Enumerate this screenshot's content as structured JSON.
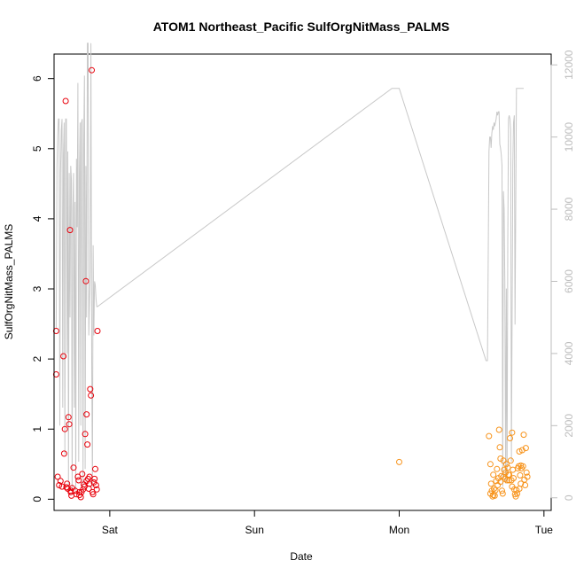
{
  "chart_data": {
    "type": "scatter",
    "title": "ATOM1 Northeast_Pacific SulfOrgNitMass_PALMS",
    "xlabel": "Date",
    "ylabel": "SulfOrgNitMass_PALMS",
    "x_unit": "days since Fri 00:00",
    "xlim": [
      0.615,
      4.05
    ],
    "ylim": [
      -0.16,
      6.35
    ],
    "x_ticks": [
      {
        "value": 1,
        "label": "Sat"
      },
      {
        "value": 2,
        "label": "Sun"
      },
      {
        "value": 3,
        "label": "Mon"
      },
      {
        "value": 4,
        "label": "Tue"
      }
    ],
    "y_ticks": [
      0,
      1,
      2,
      3,
      4,
      5,
      6
    ],
    "y2lim": [
      -350,
      12300
    ],
    "y2_ticks": [
      0,
      2000,
      4000,
      6000,
      8000,
      10000,
      12000
    ],
    "grid": false,
    "colors": {
      "flight1": "#e8000b",
      "flight2": "#f7941d",
      "altitude": "#c8c8c8"
    },
    "series": [
      {
        "name": "",
        "color": "#e8000b",
        "points": [
          [
            0.63,
            2.4
          ],
          [
            0.63,
            1.78
          ],
          [
            0.65,
            0.2
          ],
          [
            0.64,
            0.32
          ],
          [
            0.67,
            0.18
          ],
          [
            0.68,
            2.04
          ],
          [
            0.685,
            0.65
          ],
          [
            0.69,
            1.0
          ],
          [
            0.695,
            5.68
          ],
          [
            0.7,
            0.17
          ],
          [
            0.705,
            0.22
          ],
          [
            0.71,
            0.15
          ],
          [
            0.715,
            1.17
          ],
          [
            0.72,
            1.07
          ],
          [
            0.725,
            3.84
          ],
          [
            0.73,
            0.1
          ],
          [
            0.735,
            0.05
          ],
          [
            0.74,
            0.16
          ],
          [
            0.75,
            0.45
          ],
          [
            0.76,
            0.12
          ],
          [
            0.77,
            0.07
          ],
          [
            0.78,
            0.32
          ],
          [
            0.785,
            0.27
          ],
          [
            0.79,
            0.06
          ],
          [
            0.8,
            0.03
          ],
          [
            0.805,
            0.1
          ],
          [
            0.81,
            0.36
          ],
          [
            0.815,
            0.14
          ],
          [
            0.82,
            0.21
          ],
          [
            0.825,
            0.18
          ],
          [
            0.83,
            0.93
          ],
          [
            0.835,
            3.11
          ],
          [
            0.84,
            1.21
          ],
          [
            0.845,
            0.78
          ],
          [
            0.85,
            0.29
          ],
          [
            0.855,
            0.15
          ],
          [
            0.86,
            0.32
          ],
          [
            0.865,
            1.57
          ],
          [
            0.87,
            1.48
          ],
          [
            0.875,
            6.12
          ],
          [
            0.88,
            0.1
          ],
          [
            0.885,
            0.07
          ],
          [
            0.89,
            0.24
          ],
          [
            0.895,
            0.29
          ],
          [
            0.9,
            0.43
          ],
          [
            0.905,
            0.2
          ],
          [
            0.91,
            0.14
          ],
          [
            0.915,
            2.4
          ],
          [
            0.66,
            0.26
          ],
          [
            0.73,
            0.12
          ],
          [
            0.79,
            0.1
          ],
          [
            0.84,
            0.26
          ],
          [
            0.86,
            0.22
          ]
        ]
      },
      {
        "name": "",
        "color": "#f7941d",
        "points": [
          [
            3.0,
            0.53
          ],
          [
            3.62,
            0.9
          ],
          [
            3.63,
            0.5
          ],
          [
            3.635,
            0.22
          ],
          [
            3.64,
            0.12
          ],
          [
            3.645,
            0.04
          ],
          [
            3.65,
            0.06
          ],
          [
            3.655,
            0.15
          ],
          [
            3.66,
            0.05
          ],
          [
            3.665,
            0.13
          ],
          [
            3.67,
            0.26
          ],
          [
            3.675,
            0.43
          ],
          [
            3.68,
            0.2
          ],
          [
            3.685,
            0.3
          ],
          [
            3.69,
            0.99
          ],
          [
            3.695,
            0.74
          ],
          [
            3.7,
            0.58
          ],
          [
            3.705,
            0.33
          ],
          [
            3.71,
            0.12
          ],
          [
            3.715,
            0.08
          ],
          [
            3.72,
            0.55
          ],
          [
            3.725,
            0.42
          ],
          [
            3.73,
            0.29
          ],
          [
            3.735,
            0.38
          ],
          [
            3.74,
            0.5
          ],
          [
            3.745,
            0.27
          ],
          [
            3.75,
            0.45
          ],
          [
            3.755,
            0.35
          ],
          [
            3.76,
            0.27
          ],
          [
            3.765,
            0.87
          ],
          [
            3.77,
            0.55
          ],
          [
            3.775,
            0.27
          ],
          [
            3.78,
            0.95
          ],
          [
            3.785,
            0.42
          ],
          [
            3.79,
            0.3
          ],
          [
            3.795,
            0.14
          ],
          [
            3.8,
            0.07
          ],
          [
            3.805,
            0.04
          ],
          [
            3.81,
            0.13
          ],
          [
            3.815,
            0.08
          ],
          [
            3.82,
            0.44
          ],
          [
            3.825,
            0.47
          ],
          [
            3.83,
            0.68
          ],
          [
            3.835,
            0.34
          ],
          [
            3.84,
            0.22
          ],
          [
            3.845,
            0.44
          ],
          [
            3.85,
            0.7
          ],
          [
            3.855,
            0.47
          ],
          [
            3.86,
            0.92
          ],
          [
            3.865,
            0.28
          ],
          [
            3.87,
            0.2
          ],
          [
            3.875,
            0.73
          ],
          [
            3.88,
            0.38
          ],
          [
            3.885,
            0.32
          ],
          [
            3.63,
            0.08
          ],
          [
            3.7,
            0.25
          ],
          [
            3.76,
            0.35
          ],
          [
            3.83,
            0.15
          ],
          [
            3.65,
            0.35
          ],
          [
            3.72,
            0.32
          ],
          [
            3.78,
            0.18
          ],
          [
            3.84,
            0.48
          ]
        ]
      }
    ],
    "altitude_line": {
      "name": "",
      "axis": "right",
      "color": "#c8c8c8",
      "points": [
        [
          0.63,
          4700
        ],
        [
          0.635,
          9200
        ],
        [
          0.64,
          10000
        ],
        [
          0.645,
          10500
        ],
        [
          0.65,
          10500
        ],
        [
          0.655,
          2000
        ],
        [
          0.66,
          9000
        ],
        [
          0.665,
          10200
        ],
        [
          0.67,
          10500
        ],
        [
          0.675,
          2500
        ],
        [
          0.68,
          9500
        ],
        [
          0.685,
          10400
        ],
        [
          0.69,
          1200
        ],
        [
          0.695,
          10500
        ],
        [
          0.7,
          10500
        ],
        [
          0.705,
          4000
        ],
        [
          0.71,
          9600
        ],
        [
          0.715,
          300
        ],
        [
          0.72,
          9000
        ],
        [
          0.725,
          5000
        ],
        [
          0.73,
          9200
        ],
        [
          0.735,
          8800
        ],
        [
          0.74,
          200
        ],
        [
          0.745,
          8000
        ],
        [
          0.75,
          9000
        ],
        [
          0.755,
          2500
        ],
        [
          0.76,
          8200
        ],
        [
          0.765,
          200
        ],
        [
          0.77,
          9400
        ],
        [
          0.775,
          7500
        ],
        [
          0.78,
          11500
        ],
        [
          0.785,
          1000
        ],
        [
          0.79,
          9000
        ],
        [
          0.795,
          10400
        ],
        [
          0.8,
          2000
        ],
        [
          0.805,
          10400
        ],
        [
          0.81,
          10500
        ],
        [
          0.815,
          300
        ],
        [
          0.82,
          9800
        ],
        [
          0.825,
          11700
        ],
        [
          0.83,
          800
        ],
        [
          0.835,
          9200
        ],
        [
          0.84,
          5000
        ],
        [
          0.845,
          12600
        ],
        [
          0.85,
          12600
        ],
        [
          0.855,
          4500
        ],
        [
          0.86,
          5500
        ],
        [
          0.865,
          6200
        ],
        [
          0.87,
          12600
        ],
        [
          0.875,
          3800
        ],
        [
          0.88,
          300
        ],
        [
          0.885,
          7000
        ],
        [
          0.89,
          4500
        ],
        [
          0.895,
          6000
        ],
        [
          0.9,
          5900
        ],
        [
          0.905,
          5500
        ],
        [
          0.91,
          5300
        ],
        [
          0.915,
          5300
        ],
        [
          2.95,
          11350
        ],
        [
          3.0,
          11350
        ],
        [
          3.6,
          3800
        ],
        [
          3.61,
          3800
        ],
        [
          3.62,
          9600
        ],
        [
          3.625,
          10000
        ],
        [
          3.63,
          10000
        ],
        [
          3.635,
          9700
        ],
        [
          3.64,
          10100
        ],
        [
          3.645,
          10300
        ],
        [
          3.65,
          10200
        ],
        [
          3.655,
          10400
        ],
        [
          3.66,
          10300
        ],
        [
          3.665,
          10400
        ],
        [
          3.67,
          10500
        ],
        [
          3.675,
          10700
        ],
        [
          3.68,
          10600
        ],
        [
          3.685,
          10700
        ],
        [
          3.69,
          10700
        ],
        [
          3.695,
          9800
        ],
        [
          3.7,
          9700
        ],
        [
          3.705,
          9500
        ],
        [
          3.71,
          9200
        ],
        [
          3.715,
          300
        ],
        [
          3.72,
          8500
        ],
        [
          3.725,
          8000
        ],
        [
          3.73,
          6000
        ],
        [
          3.735,
          400
        ],
        [
          3.74,
          5800
        ],
        [
          3.745,
          400
        ],
        [
          3.75,
          7000
        ],
        [
          3.755,
          10500
        ],
        [
          3.76,
          10600
        ],
        [
          3.765,
          10500
        ],
        [
          3.77,
          10200
        ],
        [
          3.775,
          1000
        ],
        [
          3.78,
          5000
        ],
        [
          3.785,
          9200
        ],
        [
          3.79,
          10400
        ],
        [
          3.795,
          10600
        ],
        [
          3.8,
          4800
        ],
        [
          3.81,
          11350
        ],
        [
          3.86,
          11350
        ]
      ]
    }
  }
}
